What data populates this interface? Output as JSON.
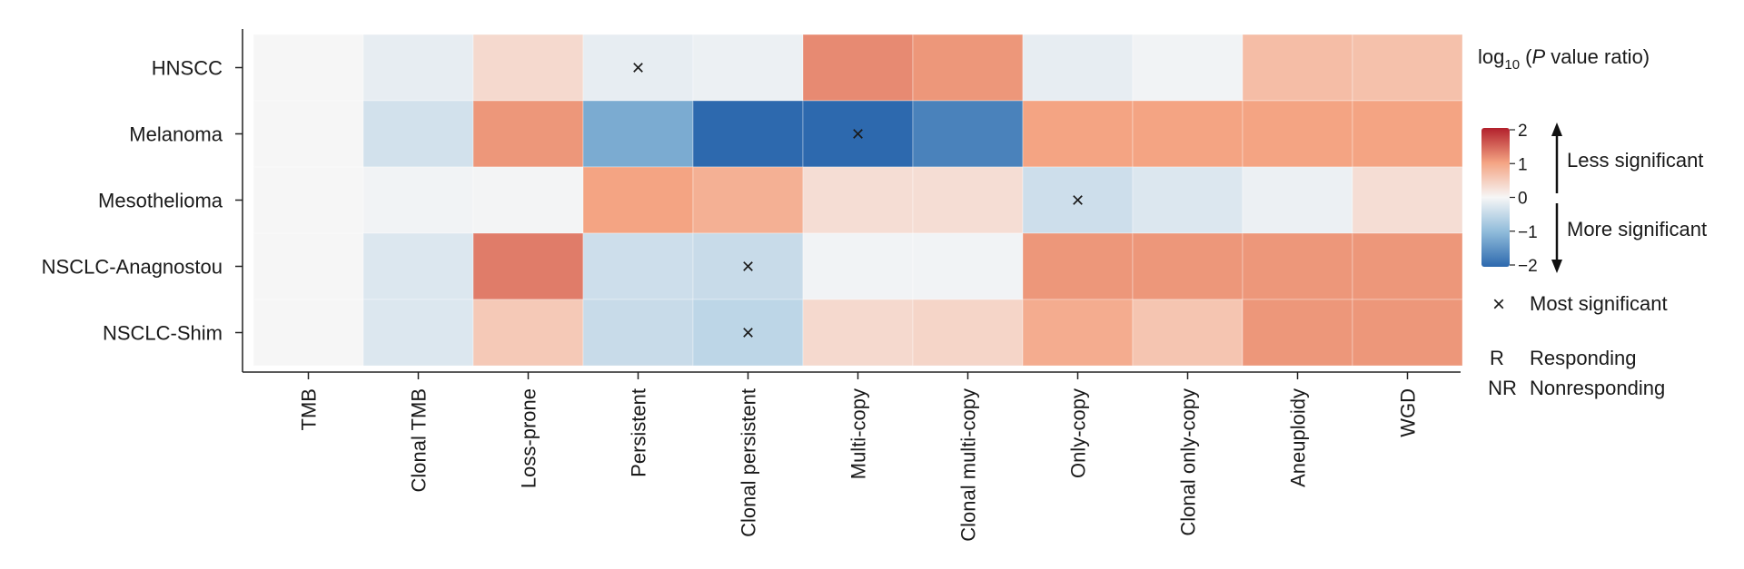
{
  "chart_data": {
    "type": "heatmap",
    "title": "",
    "rows": [
      "HNSCC",
      "Melanoma",
      "Mesothelioma",
      "NSCLC-Anagnostou",
      "NSCLC-Shim"
    ],
    "columns": [
      "TMB",
      "Clonal TMB",
      "Loss-prone",
      "Persistent",
      "Clonal persistent",
      "Multi-copy",
      "Clonal multi-copy",
      "Only-copy",
      "Clonal only-copy",
      "Aneuploidy",
      "WGD"
    ],
    "values": [
      [
        0.0,
        -0.15,
        0.35,
        -0.15,
        -0.1,
        1.2,
        1.1,
        -0.15,
        -0.05,
        0.7,
        0.65
      ],
      [
        0.0,
        -0.35,
        1.1,
        -1.2,
        -2.0,
        -2.2,
        -1.7,
        1.0,
        1.0,
        1.0,
        1.0
      ],
      [
        0.0,
        -0.05,
        -0.03,
        1.0,
        0.85,
        0.3,
        0.3,
        -0.4,
        -0.25,
        -0.1,
        0.3
      ],
      [
        0.0,
        -0.25,
        1.3,
        -0.4,
        -0.45,
        -0.05,
        -0.05,
        1.1,
        1.1,
        1.1,
        1.1
      ],
      [
        0.0,
        -0.25,
        0.55,
        -0.45,
        -0.55,
        0.35,
        0.4,
        0.9,
        0.6,
        1.1,
        1.1
      ]
    ],
    "most_significant": [
      {
        "row": "HNSCC",
        "column": "Persistent"
      },
      {
        "row": "Melanoma",
        "column": "Multi-copy"
      },
      {
        "row": "Mesothelioma",
        "column": "Only-copy"
      },
      {
        "row": "NSCLC-Anagnostou",
        "column": "Clonal persistent"
      },
      {
        "row": "NSCLC-Shim",
        "column": "Clonal persistent"
      }
    ],
    "colorbar": {
      "title_prefix": "log",
      "title_sub": "10",
      "title_paren_open": " (",
      "title_italic": "P",
      "title_suffix": " value ratio)",
      "min": -2,
      "max": 2,
      "ticks": [
        "2",
        "1",
        "0",
        "−1",
        "−2"
      ],
      "colors": [
        "#2d69ae",
        "#f6f6f6",
        "#b2202c"
      ]
    },
    "legend": {
      "less_significant": "Less significant",
      "more_significant": "More significant",
      "marker_symbol": "×",
      "marker_label": "Most significant",
      "responding_abbr": "R",
      "responding_label": "Responding",
      "responding_color": "#2b5f8f",
      "nonresponding_abbr": "NR",
      "nonresponding_label": "Nonresponding",
      "nonresponding_color": "#c0282d"
    }
  }
}
